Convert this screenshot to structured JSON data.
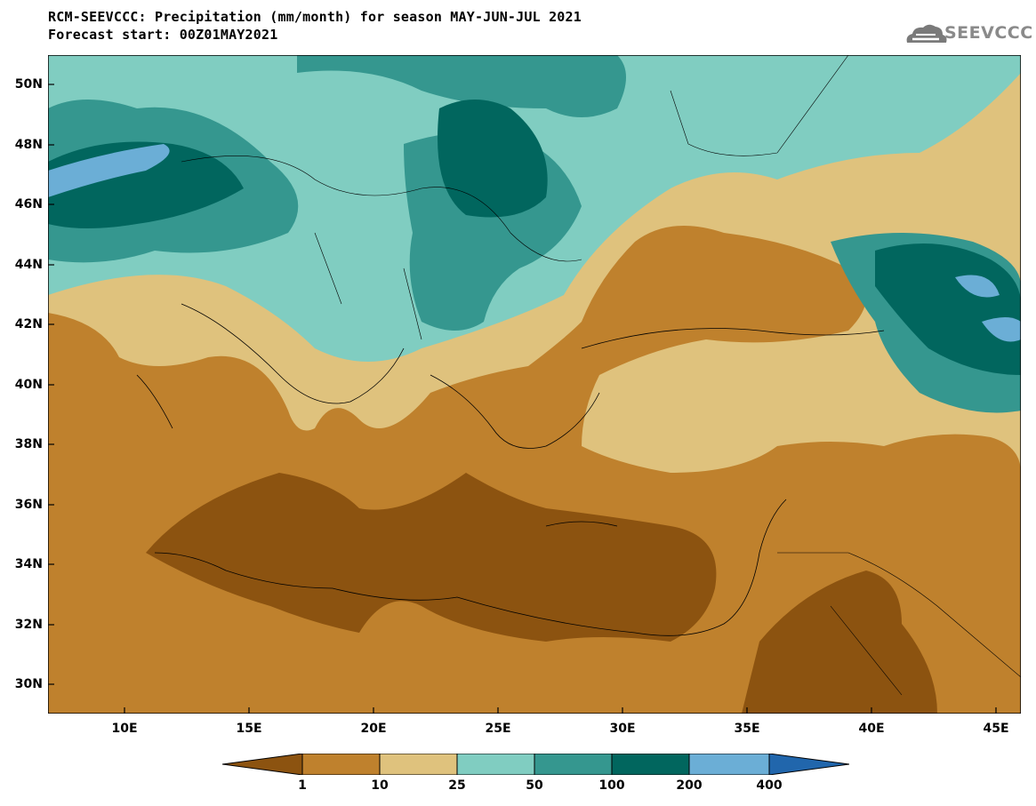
{
  "header": {
    "title_line1": "RCM-SEEVCCC: Precipitation (mm/month) for season MAY-JUN-JUL 2021",
    "title_line2": "Forecast start: 00Z01MAY2021",
    "logo_text": "SEEVCCC",
    "logo_icon": "cloud-icon"
  },
  "map": {
    "lat_labels": [
      "50N",
      "48N",
      "46N",
      "44N",
      "42N",
      "40N",
      "38N",
      "36N",
      "34N",
      "32N",
      "30N"
    ],
    "lon_labels": [
      "10E",
      "15E",
      "20E",
      "25E",
      "30E",
      "35E",
      "40E",
      "45E"
    ],
    "lon_range": [
      7,
      46
    ],
    "lat_range": [
      29,
      51
    ]
  },
  "legend": {
    "levels": [
      "1",
      "10",
      "25",
      "50",
      "100",
      "200",
      "400"
    ],
    "colors": [
      "#8c5310",
      "#bf812d",
      "#dfc27d",
      "#80cdc1",
      "#35978f",
      "#01665e",
      "#6baed6",
      "#2166ac"
    ]
  }
}
